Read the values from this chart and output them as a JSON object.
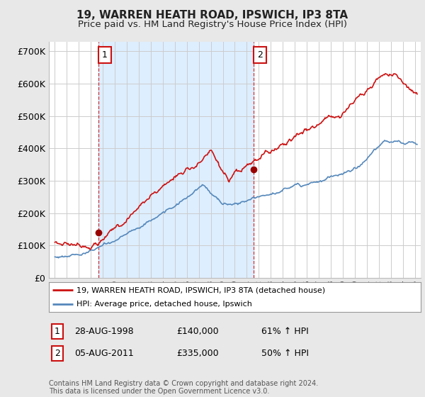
{
  "title_line1": "19, WARREN HEATH ROAD, IPSWICH, IP3 8TA",
  "title_line2": "Price paid vs. HM Land Registry's House Price Index (HPI)",
  "ylim": [
    0,
    730000
  ],
  "ytick_vals": [
    0,
    100000,
    200000,
    300000,
    400000,
    500000,
    600000,
    700000
  ],
  "ytick_labels": [
    "£0",
    "£100K",
    "£200K",
    "£300K",
    "£400K",
    "£500K",
    "£600K",
    "£700K"
  ],
  "hpi_color": "#5588bb",
  "sale_color": "#cc1111",
  "shade_color": "#ddeeff",
  "bg_color": "#e8e8e8",
  "plot_bg": "#ffffff",
  "grid_color": "#cccccc",
  "sale1_x": 1998.65,
  "sale1_y": 140000,
  "sale2_x": 2011.59,
  "sale2_y": 335000,
  "legend_sale": "19, WARREN HEATH ROAD, IPSWICH, IP3 8TA (detached house)",
  "legend_hpi": "HPI: Average price, detached house, Ipswich",
  "ann1_num": "1",
  "ann1_date": "28-AUG-1998",
  "ann1_price": "£140,000",
  "ann1_pct": "61% ↑ HPI",
  "ann2_num": "2",
  "ann2_date": "05-AUG-2011",
  "ann2_price": "£335,000",
  "ann2_pct": "50% ↑ HPI",
  "footer": "Contains HM Land Registry data © Crown copyright and database right 2024.\nThis data is licensed under the Open Government Licence v3.0.",
  "xmin": 1994.5,
  "xmax": 2025.5
}
